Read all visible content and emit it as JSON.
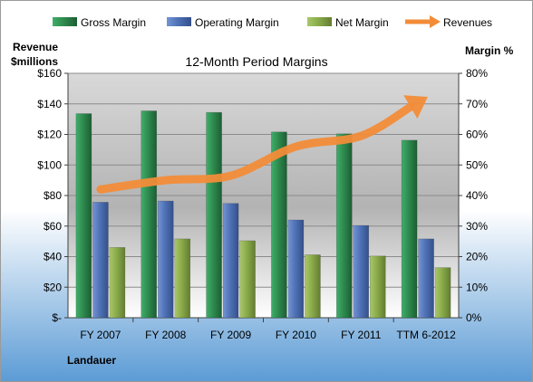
{
  "chart_data": {
    "type": "bar",
    "title": "12-Month Period Margins",
    "company": "Landauer",
    "left_axis_label": [
      "Revenue",
      "$millions"
    ],
    "right_axis_label": "Margin %",
    "categories": [
      "FY 2007",
      "FY 2008",
      "FY 2009",
      "FY 2010",
      "FY 2011",
      "TTM 6-2012"
    ],
    "left_axis": {
      "ylim": [
        0,
        160
      ],
      "ticks": [
        "$-",
        "$20",
        "$40",
        "$60",
        "$80",
        "$100",
        "$120",
        "$140",
        "$160"
      ]
    },
    "right_axis": {
      "ylim": [
        0,
        80
      ],
      "ticks": [
        "0%",
        "10%",
        "20%",
        "30%",
        "40%",
        "50%",
        "60%",
        "70%",
        "80%"
      ]
    },
    "grid": true,
    "legend_position": "top",
    "series": [
      {
        "name": "Gross Margin",
        "axis": "right",
        "kind": "bar",
        "color": "#2e8b4e",
        "values": [
          66.8,
          67.7,
          67.2,
          60.8,
          60.2,
          58.1
        ]
      },
      {
        "name": "Operating Margin",
        "axis": "right",
        "kind": "bar",
        "color": "#4f72b6",
        "values": [
          37.8,
          38.2,
          37.4,
          32.0,
          30.2,
          25.8
        ]
      },
      {
        "name": "Net Margin",
        "axis": "right",
        "kind": "bar",
        "color": "#8aab4a",
        "values": [
          23.0,
          25.8,
          25.2,
          20.6,
          20.2,
          16.4
        ]
      },
      {
        "name": "Revenues",
        "axis": "left",
        "kind": "arrow-line",
        "color": "#f28c38",
        "values": [
          84,
          90,
          93,
          112,
          119,
          144
        ]
      }
    ]
  }
}
